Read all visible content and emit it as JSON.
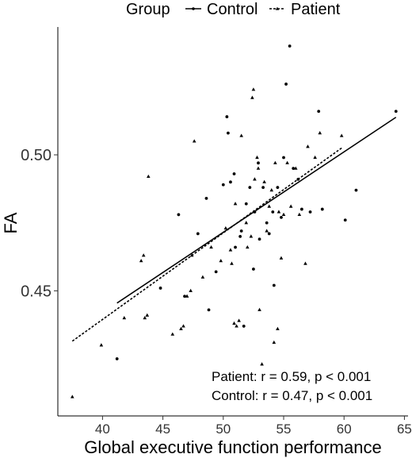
{
  "chart_data": {
    "type": "scatter",
    "xlabel": "Global executive function performance",
    "ylabel": "FA",
    "xlim": [
      36.3,
      65.3
    ],
    "ylim": [
      0.404,
      0.547
    ],
    "x_ticks": [
      40,
      45,
      50,
      55,
      60,
      65
    ],
    "y_ticks": [
      0.45,
      0.5
    ],
    "y_tick_labels": [
      "0.45",
      "0.50"
    ],
    "grid": false,
    "legend": {
      "title": "Group",
      "placement": "top",
      "entries": [
        {
          "label": "Control",
          "line": "solid"
        },
        {
          "label": "Patient",
          "line": "dashed"
        }
      ]
    },
    "annotations": [
      "Patient: r = 0.59, p < 0.001",
      "Control: r = 0.47, p < 0.001"
    ],
    "series": [
      {
        "name": "Control",
        "marker": "circle",
        "points": [
          [
            41.2,
            0.425
          ],
          [
            44.8,
            0.451
          ],
          [
            46.3,
            0.478
          ],
          [
            46.8,
            0.448
          ],
          [
            47.9,
            0.471
          ],
          [
            48.6,
            0.484
          ],
          [
            48.8,
            0.443
          ],
          [
            49.4,
            0.457
          ],
          [
            50.0,
            0.489
          ],
          [
            50.3,
            0.514
          ],
          [
            50.4,
            0.508
          ],
          [
            50.6,
            0.49
          ],
          [
            50.9,
            0.493
          ],
          [
            51.0,
            0.466
          ],
          [
            51.4,
            0.47
          ],
          [
            51.5,
            0.472
          ],
          [
            51.7,
            0.437
          ],
          [
            51.9,
            0.482
          ],
          [
            52.2,
            0.488
          ],
          [
            52.5,
            0.458
          ],
          [
            52.6,
            0.479
          ],
          [
            52.9,
            0.497
          ],
          [
            53.0,
            0.469
          ],
          [
            53.3,
            0.488
          ],
          [
            53.6,
            0.475
          ],
          [
            53.8,
            0.471
          ],
          [
            54.1,
            0.479
          ],
          [
            54.2,
            0.452
          ],
          [
            54.5,
            0.488
          ],
          [
            54.8,
            0.477
          ],
          [
            55.0,
            0.499
          ],
          [
            55.2,
            0.526
          ],
          [
            55.5,
            0.54
          ],
          [
            55.8,
            0.495
          ],
          [
            56.2,
            0.491
          ],
          [
            56.5,
            0.48
          ],
          [
            57.2,
            0.479
          ],
          [
            57.9,
            0.516
          ],
          [
            58.2,
            0.48
          ],
          [
            60.1,
            0.476
          ],
          [
            61.0,
            0.487
          ],
          [
            64.3,
            0.516
          ]
        ]
      },
      {
        "name": "Patient",
        "marker": "triangle",
        "points": [
          [
            37.5,
            0.411
          ],
          [
            39.9,
            0.43
          ],
          [
            41.8,
            0.44
          ],
          [
            43.2,
            0.461
          ],
          [
            43.4,
            0.463
          ],
          [
            43.5,
            0.44
          ],
          [
            43.7,
            0.441
          ],
          [
            43.8,
            0.492
          ],
          [
            45.8,
            0.434
          ],
          [
            46.5,
            0.436
          ],
          [
            46.7,
            0.437
          ],
          [
            47.0,
            0.448
          ],
          [
            47.3,
            0.45
          ],
          [
            47.4,
            0.463
          ],
          [
            47.6,
            0.505
          ],
          [
            48.3,
            0.455
          ],
          [
            49.0,
            0.466
          ],
          [
            49.8,
            0.461
          ],
          [
            50.2,
            0.473
          ],
          [
            50.6,
            0.465
          ],
          [
            50.7,
            0.46
          ],
          [
            50.9,
            0.438
          ],
          [
            51.0,
            0.482
          ],
          [
            51.1,
            0.437
          ],
          [
            51.3,
            0.439
          ],
          [
            51.5,
            0.507
          ],
          [
            51.9,
            0.475
          ],
          [
            52.0,
            0.466
          ],
          [
            52.3,
            0.47
          ],
          [
            52.4,
            0.521
          ],
          [
            52.5,
            0.524
          ],
          [
            52.6,
            0.491
          ],
          [
            52.8,
            0.499
          ],
          [
            52.9,
            0.495
          ],
          [
            53.0,
            0.443
          ],
          [
            53.2,
            0.423
          ],
          [
            53.4,
            0.49
          ],
          [
            53.6,
            0.472
          ],
          [
            53.8,
            0.481
          ],
          [
            54.0,
            0.487
          ],
          [
            54.2,
            0.431
          ],
          [
            54.3,
            0.497
          ],
          [
            54.5,
            0.436
          ],
          [
            54.6,
            0.479
          ],
          [
            54.8,
            0.462
          ],
          [
            55.0,
            0.478
          ],
          [
            55.3,
            0.497
          ],
          [
            55.6,
            0.481
          ],
          [
            56.0,
            0.495
          ],
          [
            56.3,
            0.478
          ],
          [
            56.8,
            0.46
          ],
          [
            57.0,
            0.503
          ],
          [
            57.6,
            0.499
          ],
          [
            58.0,
            0.508
          ],
          [
            59.8,
            0.507
          ]
        ]
      }
    ],
    "fit_lines": [
      {
        "name": "Control",
        "style": "solid",
        "from": [
          41.2,
          0.4455
        ],
        "to": [
          64.3,
          0.5138
        ]
      },
      {
        "name": "Patient",
        "style": "dashed",
        "from": [
          37.5,
          0.4315
        ],
        "to": [
          59.8,
          0.5025
        ]
      }
    ]
  }
}
